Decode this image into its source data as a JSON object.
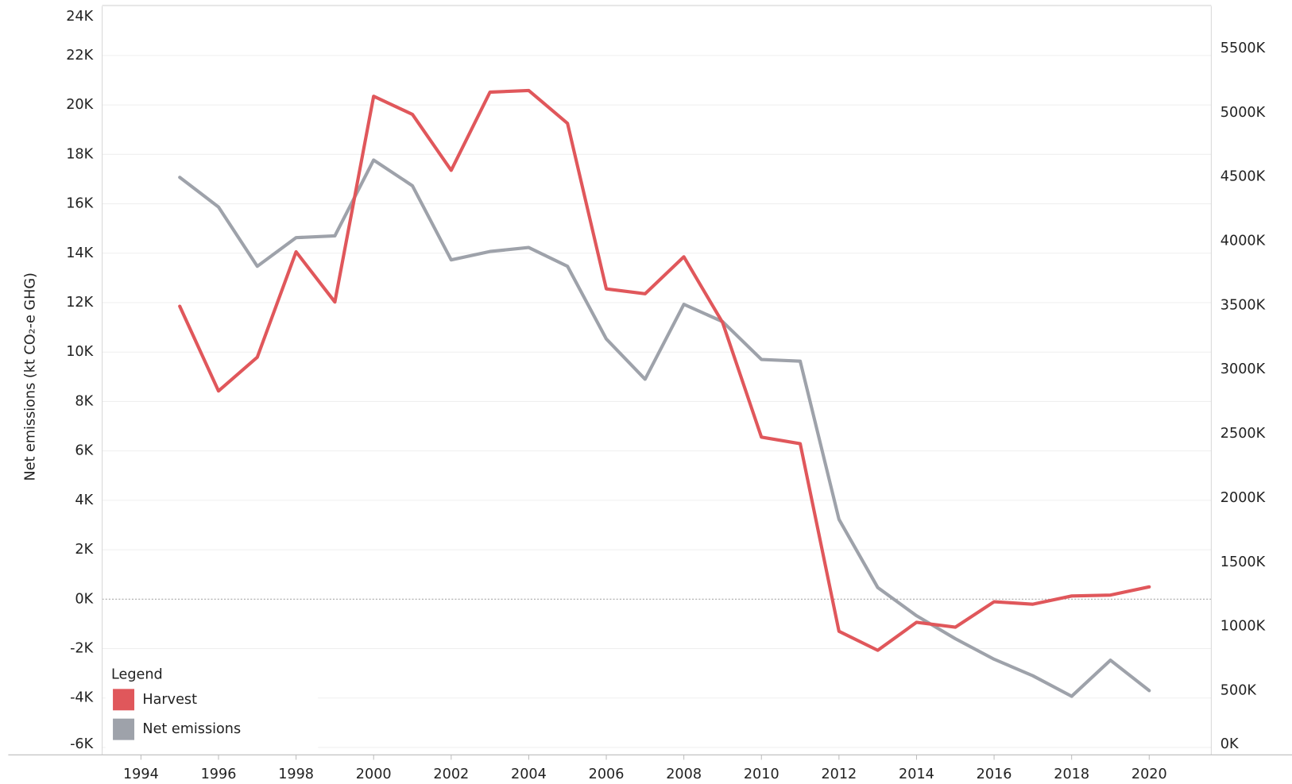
{
  "chart_data": {
    "type": "line",
    "x": [
      1995,
      1996,
      1997,
      1998,
      1999,
      2000,
      2001,
      2002,
      2003,
      2004,
      2005,
      2006,
      2007,
      2008,
      2009,
      2010,
      2011,
      2012,
      2013,
      2014,
      2015,
      2016,
      2017,
      2018,
      2019,
      2020
    ],
    "series": [
      {
        "name": "Harvest",
        "color": "#e0575b",
        "axis": "y2",
        "values": [
          3493000,
          2833000,
          3096000,
          3917000,
          3526000,
          5128000,
          4987000,
          4551000,
          5160000,
          5173000,
          4917000,
          3628000,
          3590000,
          3878000,
          3365000,
          2474000,
          2423000,
          962000,
          814000,
          1032000,
          994000,
          1192000,
          1173000,
          1237000,
          1244000,
          1308000
        ]
      },
      {
        "name": "Net emissions",
        "color": "#9ea2aa",
        "values": [
          17070,
          15870,
          13470,
          14630,
          14700,
          17770,
          16730,
          13730,
          14070,
          14230,
          13470,
          10530,
          8900,
          11930,
          11230,
          9700,
          9630,
          3230,
          470,
          -670,
          -1600,
          -2430,
          -3100,
          -3930,
          -2470,
          -3700
        ]
      }
    ],
    "y_label": "Net emissions (kt CO₂-e GHG)",
    "legend_title": "Legend",
    "legend": "bottom-left",
    "grid": true,
    "xlim": [
      1993,
      2021.6
    ],
    "xticks": [
      1994,
      1996,
      1998,
      2000,
      2002,
      2004,
      2006,
      2008,
      2010,
      2012,
      2014,
      2016,
      2018,
      2020
    ],
    "ylim": [
      -6300,
      24000
    ],
    "yticks": [
      {
        "value": -6000,
        "label": "-6K"
      },
      {
        "value": -4000,
        "label": "-4K"
      },
      {
        "value": -2000,
        "label": "-2K"
      },
      {
        "value": 0,
        "label": "0K"
      },
      {
        "value": 2000,
        "label": "2K"
      },
      {
        "value": 4000,
        "label": "4K"
      },
      {
        "value": 6000,
        "label": "6K"
      },
      {
        "value": 8000,
        "label": "8K"
      },
      {
        "value": 10000,
        "label": "10K"
      },
      {
        "value": 12000,
        "label": "12K"
      },
      {
        "value": 14000,
        "label": "14K"
      },
      {
        "value": 16000,
        "label": "16K"
      },
      {
        "value": 18000,
        "label": "18K"
      },
      {
        "value": 20000,
        "label": "20K"
      },
      {
        "value": 22000,
        "label": "22K"
      },
      {
        "value": 24000,
        "label": "24K"
      }
    ],
    "y2lim": [
      0,
      5830000
    ],
    "y2ticks": [
      {
        "value": 0,
        "label": "0K"
      },
      {
        "value": 500000,
        "label": "500K"
      },
      {
        "value": 1000000,
        "label": "1000K"
      },
      {
        "value": 1500000,
        "label": "1500K"
      },
      {
        "value": 2000000,
        "label": "2000K"
      },
      {
        "value": 2500000,
        "label": "2500K"
      },
      {
        "value": 3000000,
        "label": "3000K"
      },
      {
        "value": 3500000,
        "label": "3500K"
      },
      {
        "value": 4000000,
        "label": "4000K"
      },
      {
        "value": 4500000,
        "label": "4500K"
      },
      {
        "value": 5000000,
        "label": "5000K"
      },
      {
        "value": 5500000,
        "label": "5500K"
      }
    ]
  }
}
